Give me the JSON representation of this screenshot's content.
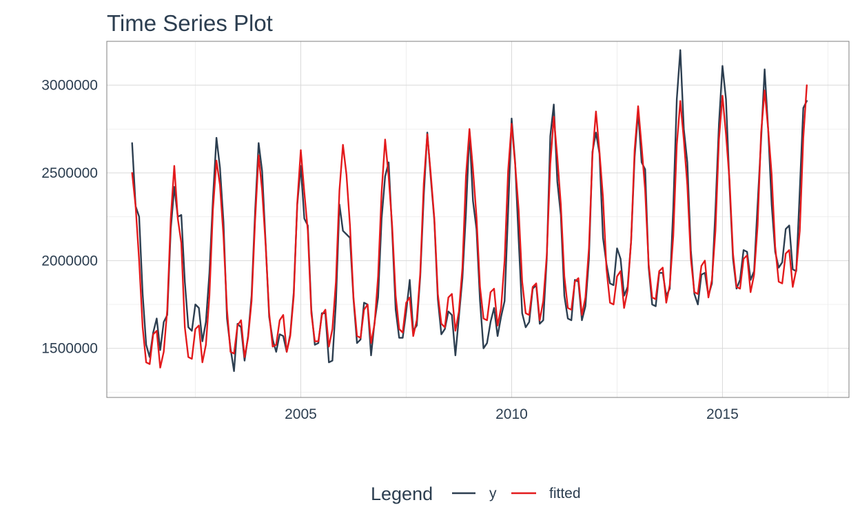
{
  "chart_data": {
    "type": "line",
    "title": "Time Series Plot",
    "xlabel": "",
    "ylabel": "",
    "xlim": [
      2000.4,
      2018.0
    ],
    "ylim": [
      1220000,
      3250000
    ],
    "x_ticks": [
      2005,
      2010,
      2015
    ],
    "x_tick_labels": [
      "2005",
      "2010",
      "2015"
    ],
    "y_ticks": [
      1500000,
      2000000,
      2500000,
      3000000
    ],
    "y_tick_labels": [
      "1500000",
      "2000000",
      "2500000",
      "3000000"
    ],
    "grid": true,
    "legend": {
      "title": "Legend",
      "position": "bottom",
      "entries": [
        {
          "label": "y",
          "color": "#2c3e50"
        },
        {
          "label": "fitted",
          "color": "#e31a1c"
        }
      ]
    },
    "x_start": 2001.0,
    "x_step": 0.08333333,
    "series": [
      {
        "name": "y",
        "color": "#2c3e50",
        "values": [
          2670000,
          2310000,
          2250000,
          1810000,
          1520000,
          1450000,
          1590000,
          1670000,
          1490000,
          1650000,
          1690000,
          2180000,
          2420000,
          2250000,
          2260000,
          1880000,
          1620000,
          1600000,
          1750000,
          1730000,
          1540000,
          1650000,
          1930000,
          2350000,
          2700000,
          2530000,
          2220000,
          1670000,
          1500000,
          1370000,
          1640000,
          1620000,
          1430000,
          1570000,
          1800000,
          2280000,
          2670000,
          2510000,
          2100000,
          1680000,
          1550000,
          1480000,
          1580000,
          1570000,
          1480000,
          1580000,
          1820000,
          2320000,
          2540000,
          2240000,
          2200000,
          1720000,
          1520000,
          1530000,
          1700000,
          1700000,
          1420000,
          1430000,
          1760000,
          2320000,
          2170000,
          2150000,
          2130000,
          1780000,
          1530000,
          1550000,
          1760000,
          1750000,
          1460000,
          1650000,
          1790000,
          2240000,
          2480000,
          2560000,
          2170000,
          1720000,
          1560000,
          1560000,
          1710000,
          1890000,
          1600000,
          1630000,
          1910000,
          2370000,
          2730000,
          2470000,
          2230000,
          1780000,
          1580000,
          1610000,
          1710000,
          1690000,
          1460000,
          1680000,
          1900000,
          2270000,
          2740000,
          2340000,
          2180000,
          1770000,
          1500000,
          1530000,
          1650000,
          1730000,
          1570000,
          1680000,
          1770000,
          2280000,
          2810000,
          2560000,
          2120000,
          1700000,
          1620000,
          1650000,
          1840000,
          1860000,
          1640000,
          1660000,
          2010000,
          2710000,
          2890000,
          2450000,
          2260000,
          1800000,
          1670000,
          1660000,
          1890000,
          1880000,
          1660000,
          1740000,
          2010000,
          2620000,
          2730000,
          2610000,
          2130000,
          1980000,
          1870000,
          1860000,
          2070000,
          2010000,
          1800000,
          1850000,
          2110000,
          2590000,
          2850000,
          2560000,
          2520000,
          1960000,
          1750000,
          1740000,
          1930000,
          1930000,
          1800000,
          1840000,
          2300000,
          2920000,
          3200000,
          2750000,
          2560000,
          2060000,
          1810000,
          1750000,
          1920000,
          1930000,
          1800000,
          1870000,
          2290000,
          2780000,
          3110000,
          2920000,
          2430000,
          2010000,
          1840000,
          1890000,
          2060000,
          2050000,
          1890000,
          1940000,
          2320000,
          2690000,
          3090000,
          2750000,
          2320000,
          2050000,
          1960000,
          1990000,
          2180000,
          2200000,
          1950000,
          1940000,
          2400000,
          2870000,
          2910000
        ]
      },
      {
        "name": "fitted",
        "color": "#e31a1c",
        "values": [
          2500000,
          2310000,
          2000000,
          1620000,
          1420000,
          1410000,
          1580000,
          1600000,
          1390000,
          1480000,
          1720000,
          2240000,
          2540000,
          2240000,
          2100000,
          1620000,
          1450000,
          1440000,
          1610000,
          1630000,
          1420000,
          1520000,
          1800000,
          2290000,
          2570000,
          2430000,
          2140000,
          1720000,
          1480000,
          1470000,
          1630000,
          1660000,
          1450000,
          1560000,
          1770000,
          2230000,
          2600000,
          2400000,
          2090000,
          1700000,
          1510000,
          1520000,
          1660000,
          1690000,
          1480000,
          1570000,
          1800000,
          2330000,
          2630000,
          2390000,
          2170000,
          1700000,
          1540000,
          1540000,
          1690000,
          1720000,
          1510000,
          1610000,
          1880000,
          2400000,
          2660000,
          2490000,
          2200000,
          1790000,
          1570000,
          1560000,
          1720000,
          1750000,
          1530000,
          1640000,
          1910000,
          2390000,
          2690000,
          2480000,
          2200000,
          1800000,
          1610000,
          1590000,
          1760000,
          1790000,
          1570000,
          1660000,
          1930000,
          2440000,
          2720000,
          2490000,
          2240000,
          1810000,
          1640000,
          1620000,
          1790000,
          1810000,
          1600000,
          1710000,
          1960000,
          2480000,
          2750000,
          2520000,
          2250000,
          1850000,
          1670000,
          1660000,
          1820000,
          1840000,
          1630000,
          1730000,
          2000000,
          2510000,
          2780000,
          2550000,
          2290000,
          1880000,
          1700000,
          1690000,
          1850000,
          1870000,
          1660000,
          1770000,
          2030000,
          2550000,
          2820000,
          2590000,
          2320000,
          1910000,
          1730000,
          1720000,
          1880000,
          1900000,
          1690000,
          1790000,
          2070000,
          2600000,
          2850000,
          2620000,
          2360000,
          1950000,
          1760000,
          1750000,
          1910000,
          1940000,
          1730000,
          1830000,
          2110000,
          2630000,
          2880000,
          2650000,
          2400000,
          1980000,
          1790000,
          1780000,
          1940000,
          1960000,
          1760000,
          1860000,
          2140000,
          2660000,
          2910000,
          2690000,
          2430000,
          2010000,
          1820000,
          1810000,
          1970000,
          2000000,
          1790000,
          1890000,
          2170000,
          2690000,
          2940000,
          2720000,
          2460000,
          2040000,
          1850000,
          1840000,
          2010000,
          2030000,
          1820000,
          1920000,
          2200000,
          2730000,
          2970000,
          2750000,
          2490000,
          2080000,
          1880000,
          1870000,
          2040000,
          2060000,
          1850000,
          1950000,
          2170000,
          2700000,
          3000000
        ]
      }
    ]
  }
}
